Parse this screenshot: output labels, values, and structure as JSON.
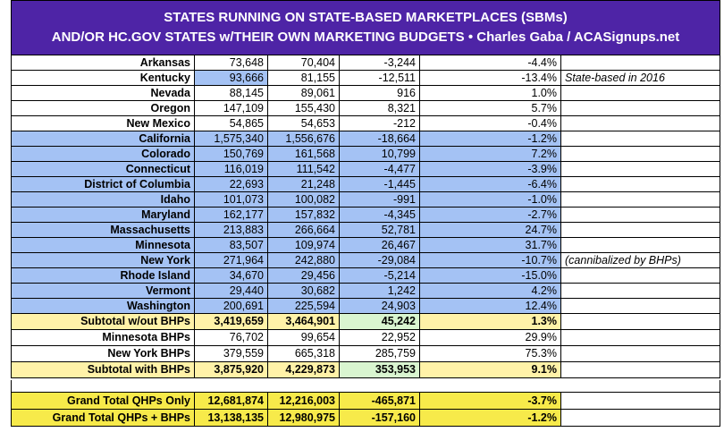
{
  "header": {
    "lines": [
      "STATES RUNNING ON STATE-BASED MARKETPLACES (SBMs)",
      "AND/OR HC.GOV STATES w/THEIR OWN MARKETING BUDGETS  •  Charles Gaba / ACASignups.net"
    ],
    "color": "#4e24a6"
  },
  "table": {
    "rows": [
      {
        "cells": [
          "Arkansas",
          "73,648",
          "70,404",
          "-3,244",
          "-4.4%"
        ],
        "fill": "#ffffff"
      },
      {
        "cells": [
          "Kentucky",
          "93,666",
          "81,155",
          "-12,511",
          "-13.4%"
        ],
        "note": "State-based in 2016",
        "fill": "#ffffff",
        "cell_fill": {
          "1": "#a4c2f4"
        }
      },
      {
        "cells": [
          "Nevada",
          "88,145",
          "89,061",
          "916",
          "1.0%"
        ],
        "fill": "#ffffff"
      },
      {
        "cells": [
          "Oregon",
          "147,109",
          "155,430",
          "8,321",
          "5.7%"
        ],
        "fill": "#ffffff"
      },
      {
        "cells": [
          "New Mexico",
          "54,865",
          "54,653",
          "-212",
          "-0.4%"
        ],
        "fill": "#ffffff"
      },
      {
        "cells": [
          "California",
          "1,575,340",
          "1,556,676",
          "-18,664",
          "-1.2%"
        ],
        "fill": "#a4c2f4"
      },
      {
        "cells": [
          "Colorado",
          "150,769",
          "161,568",
          "10,799",
          "7.2%"
        ],
        "fill": "#a4c2f4"
      },
      {
        "cells": [
          "Connecticut",
          "116,019",
          "111,542",
          "-4,477",
          "-3.9%"
        ],
        "fill": "#a4c2f4"
      },
      {
        "cells": [
          "District of Columbia",
          "22,693",
          "21,248",
          "-1,445",
          "-6.4%"
        ],
        "fill": "#a4c2f4"
      },
      {
        "cells": [
          "Idaho",
          "101,073",
          "100,082",
          "-991",
          "-1.0%"
        ],
        "fill": "#a4c2f4"
      },
      {
        "cells": [
          "Maryland",
          "162,177",
          "157,832",
          "-4,345",
          "-2.7%"
        ],
        "fill": "#a4c2f4"
      },
      {
        "cells": [
          "Massachusetts",
          "213,883",
          "266,664",
          "52,781",
          "24.7%"
        ],
        "fill": "#a4c2f4"
      },
      {
        "cells": [
          "Minnesota",
          "83,507",
          "109,974",
          "26,467",
          "31.7%"
        ],
        "fill": "#a4c2f4"
      },
      {
        "cells": [
          "New York",
          "271,964",
          "242,880",
          "-29,084",
          "-10.7%"
        ],
        "note": "(cannibalized by BHPs)",
        "fill": "#a4c2f4"
      },
      {
        "cells": [
          "Rhode Island",
          "34,670",
          "29,456",
          "-5,214",
          "-15.0%"
        ],
        "fill": "#a4c2f4"
      },
      {
        "cells": [
          "Vermont",
          "29,440",
          "30,682",
          "1,242",
          "4.2%"
        ],
        "fill": "#a4c2f4"
      },
      {
        "cells": [
          "Washington",
          "200,691",
          "225,594",
          "24,903",
          "12.4%"
        ],
        "fill": "#a4c2f4"
      },
      {
        "cells": [
          "Subtotal w/out BHPs",
          "3,419,659",
          "3,464,901",
          "45,242",
          "1.3%"
        ],
        "fill": "#fff2a8",
        "bold": true,
        "cell_fill": {
          "3": "#d9f5d0"
        }
      },
      {
        "cells": [
          "Minnesota BHPs",
          "76,702",
          "99,654",
          "22,952",
          "29.9%"
        ],
        "fill": "#ffffff"
      },
      {
        "cells": [
          "New York BHPs",
          "379,559",
          "665,318",
          "285,759",
          "75.3%"
        ],
        "fill": "#ffffff"
      },
      {
        "cells": [
          "Subtotal with BHPs",
          "3,875,920",
          "4,229,873",
          "353,953",
          "9.1%"
        ],
        "fill": "#fff2a8",
        "bold": true,
        "cell_fill": {
          "3": "#d9f5d0"
        }
      }
    ],
    "totals": [
      {
        "cells": [
          "Grand Total QHPs Only",
          "12,681,874",
          "12,216,003",
          "-465,871",
          "-3.7%"
        ],
        "fill": "#f7ea4a",
        "bold": true
      },
      {
        "cells": [
          "Grand Total QHPs + BHPs",
          "13,138,135",
          "12,980,975",
          "-157,160",
          "-1.2%"
        ],
        "fill": "#f7ea4a",
        "bold": true
      }
    ]
  }
}
